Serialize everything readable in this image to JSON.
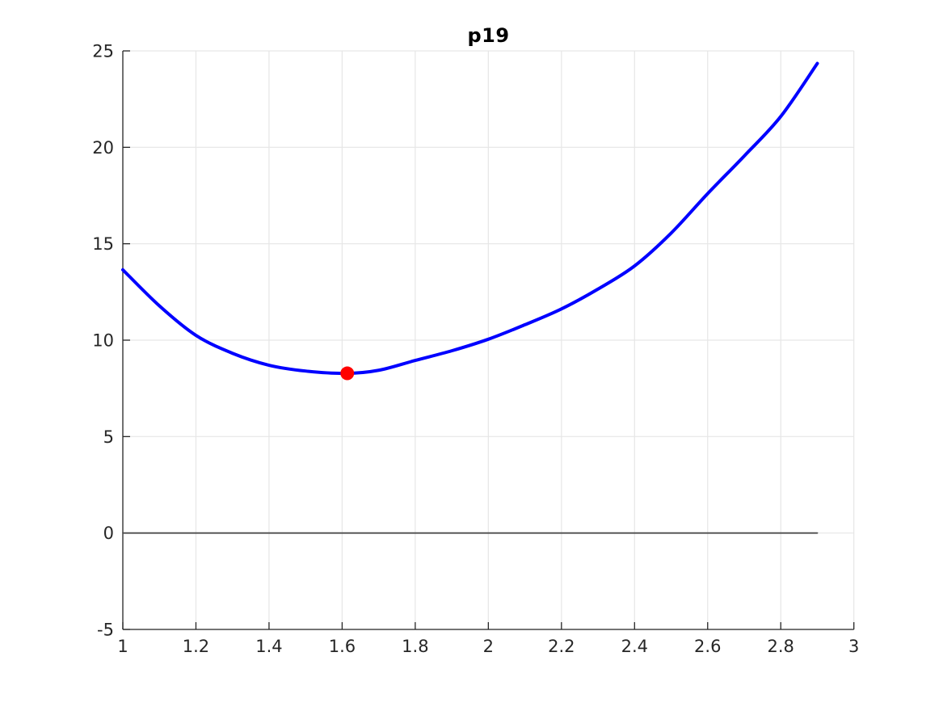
{
  "chart_data": {
    "type": "line",
    "title": "p19",
    "xlabel": "",
    "ylabel": "",
    "xlim": [
      1,
      3
    ],
    "ylim": [
      -5,
      25
    ],
    "grid": true,
    "legend": null,
    "x_ticks": {
      "values": [
        1,
        1.2,
        1.4,
        1.6,
        1.8,
        2,
        2.2,
        2.4,
        2.6,
        2.8,
        3
      ],
      "labels": [
        "1",
        "1.2",
        "1.4",
        "1.6",
        "1.8",
        "2",
        "2.2",
        "2.4",
        "2.6",
        "2.8",
        "3"
      ]
    },
    "y_ticks": {
      "values": [
        -5,
        0,
        5,
        10,
        15,
        20,
        25
      ],
      "labels": [
        "-5",
        "0",
        "5",
        "10",
        "15",
        "20",
        "25"
      ]
    },
    "series": [
      {
        "name": "objective-curve",
        "color": "#0000ff",
        "line_width": 4,
        "smooth": true,
        "points": [
          [
            1.0,
            13.65
          ],
          [
            1.1,
            11.78
          ],
          [
            1.2,
            10.25
          ],
          [
            1.3,
            9.32
          ],
          [
            1.4,
            8.7
          ],
          [
            1.5,
            8.4
          ],
          [
            1.61,
            8.28
          ],
          [
            1.7,
            8.44
          ],
          [
            1.8,
            8.95
          ],
          [
            1.9,
            9.45
          ],
          [
            2.0,
            10.05
          ],
          [
            2.1,
            10.8
          ],
          [
            2.2,
            11.62
          ],
          [
            2.3,
            12.65
          ],
          [
            2.4,
            13.85
          ],
          [
            2.5,
            15.55
          ],
          [
            2.6,
            17.6
          ],
          [
            2.7,
            19.55
          ],
          [
            2.8,
            21.6
          ],
          [
            2.9,
            24.35
          ]
        ]
      },
      {
        "name": "zero-line",
        "color": "#4d4d4d",
        "line_width": 1.8,
        "smooth": false,
        "points": [
          [
            1,
            0
          ],
          [
            2.9,
            0
          ]
        ]
      }
    ],
    "markers": [
      {
        "name": "minimum-point",
        "x": 1.614,
        "y": 8.28,
        "color": "#ff0000",
        "radius": 8.5
      }
    ]
  },
  "styles": {
    "background": "#ffffff",
    "grid_color": "#e6e6e6",
    "axis_color": "#262626",
    "tick_label_color": "#262626",
    "title_color": "#000000"
  }
}
